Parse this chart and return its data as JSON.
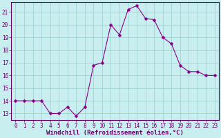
{
  "x": [
    0,
    1,
    2,
    3,
    4,
    5,
    6,
    7,
    8,
    9,
    10,
    11,
    12,
    13,
    14,
    15,
    16,
    17,
    18,
    19,
    20,
    21,
    22,
    23
  ],
  "y": [
    14.0,
    14.0,
    14.0,
    14.0,
    13.0,
    13.0,
    13.5,
    12.8,
    13.5,
    16.8,
    17.0,
    20.0,
    19.2,
    21.2,
    21.5,
    20.5,
    20.4,
    19.0,
    18.5,
    16.8,
    16.3,
    16.3,
    16.0,
    16.0
  ],
  "line_color": "#880088",
  "marker": "D",
  "markersize": 2.5,
  "linewidth": 0.8,
  "bg_color": "#c8eef0",
  "grid_color": "#99cccc",
  "xlabel": "Windchill (Refroidissement éolien,°C)",
  "xlim": [
    -0.5,
    23.5
  ],
  "ylim": [
    12.5,
    21.8
  ],
  "yticks": [
    13,
    14,
    15,
    16,
    17,
    18,
    19,
    20,
    21
  ],
  "xticks": [
    0,
    1,
    2,
    3,
    4,
    5,
    6,
    7,
    8,
    9,
    10,
    11,
    12,
    13,
    14,
    15,
    16,
    17,
    18,
    19,
    20,
    21,
    22,
    23
  ],
  "tick_labelsize": 5.5,
  "xlabel_fontsize": 6.5,
  "tick_color": "#660066",
  "axis_color": "#660066",
  "spine_color": "#660066"
}
